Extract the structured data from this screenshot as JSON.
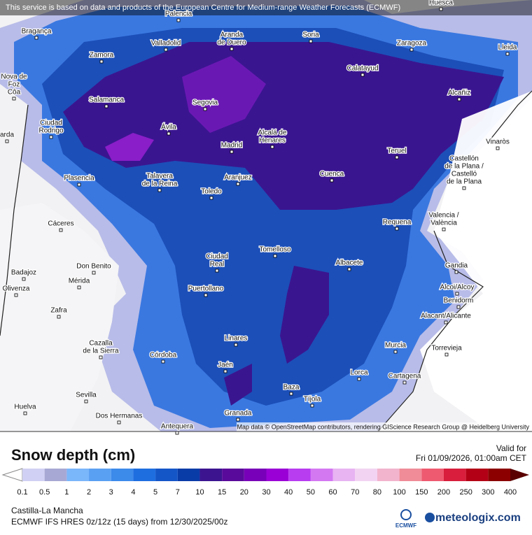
{
  "header": {
    "notice": "This service is based on data and products of the European Centre for Medium-range Weather Forecasts (ECMWF)"
  },
  "map": {
    "attribution": "Map data © OpenStreetMap contributors, rendering GIScience Research Group @ Heidelberg University",
    "places": [
      [
        "Huesca"
      ],
      [
        "Palencia"
      ],
      [
        "Bragança"
      ],
      [
        "Soria"
      ],
      [
        "Zaragoza"
      ],
      [
        "Lleida"
      ],
      [
        "Aranda",
        "de Duero"
      ],
      [
        "Valladolid"
      ],
      [
        "Zamora"
      ],
      [
        "Calatayud"
      ],
      [
        "Nova de",
        "Foz",
        "Côa"
      ],
      [
        "Salamanca"
      ],
      [
        "Segovia"
      ],
      [
        "Alcañiz"
      ],
      [
        "Ciudad",
        "Rodrigo"
      ],
      [
        "Ávila"
      ],
      [
        "Alcalá de",
        "Henares"
      ],
      [
        "Madrid"
      ],
      [
        "Teruel"
      ],
      [
        "Vinaròs"
      ],
      [
        "Castellón",
        "de la Plana /",
        "Castelló",
        "de la Plana"
      ],
      [
        "arda"
      ],
      [
        "Talavera",
        "de la Reina"
      ],
      [
        "Aranjuez"
      ],
      [
        "Cuenca"
      ],
      [
        "Plasencia"
      ],
      [
        "Toledo"
      ],
      [
        "Requena"
      ],
      [
        "Valencia /",
        "València"
      ],
      [
        "Cáceres"
      ],
      [
        "Ciudad",
        "Real"
      ],
      [
        "Tomelloso"
      ],
      [
        "Albacete"
      ],
      [
        "Gandia"
      ],
      [
        "Badajoz"
      ],
      [
        "Don Benito"
      ],
      [
        "Mérida"
      ],
      [
        "Alcoi/Alcoy"
      ],
      [
        "Olivenza"
      ],
      [
        "Puertollano"
      ],
      [
        "Benidorm"
      ],
      [
        "Zafra"
      ],
      [
        "Alacant/Alicante"
      ],
      [
        "Linares"
      ],
      [
        "Murcia"
      ],
      [
        "Torrevieja"
      ],
      [
        "Cazalla",
        "de la Sierra"
      ],
      [
        "Córdoba"
      ],
      [
        "Jaén"
      ],
      [
        "Lorca"
      ],
      [
        "Cartagena"
      ],
      [
        "Baza"
      ],
      [
        "Tíjola"
      ],
      [
        "Sevilla"
      ],
      [
        "Huelva"
      ],
      [
        "Dos Hermanas"
      ],
      [
        "Granada"
      ],
      [
        "Antequera"
      ]
    ]
  },
  "legend": {
    "title": "Snow depth (cm)",
    "valid_label": "Valid for",
    "valid_time": "Fri 01/09/2026, 01:00am CET",
    "ticks": [
      0.1,
      0.5,
      1,
      2,
      3,
      4,
      5,
      7,
      10,
      15,
      20,
      30,
      40,
      50,
      60,
      70,
      80,
      100,
      150,
      200,
      250,
      300,
      400
    ]
  },
  "footer": {
    "region": "Castilla-La Mancha",
    "model": "ECMWF IFS HRES 0z/12z (15 days) from  12/30/2025/00z",
    "logo_small": "ECMWF",
    "logo": "meteologix.com"
  }
}
